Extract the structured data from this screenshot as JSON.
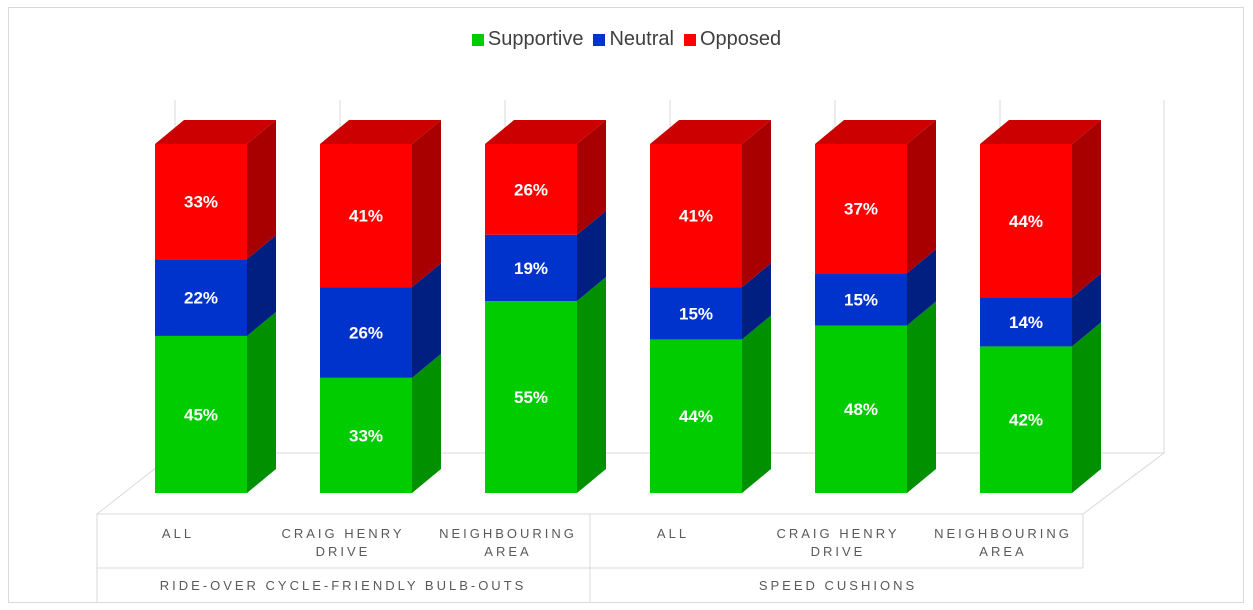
{
  "chart_data": {
    "type": "bar",
    "stacked": true,
    "three_d": true,
    "legend_position": "top",
    "groups": [
      {
        "label": "RIDE-OVER CYCLE-FRIENDLY BULB-OUTS",
        "categories": [
          "ALL",
          "CRAIG HENRY DRIVE",
          "NEIGHBOURING AREA"
        ]
      },
      {
        "label": "SPEED CUSHIONS",
        "categories": [
          "ALL",
          "CRAIG HENRY DRIVE",
          "NEIGHBOURING AREA"
        ]
      }
    ],
    "categories": [
      [
        "ALL"
      ],
      [
        "CRAIG HENRY",
        "DRIVE"
      ],
      [
        "NEIGHBOURING",
        "AREA"
      ],
      [
        "ALL"
      ],
      [
        "CRAIG HENRY",
        "DRIVE"
      ],
      [
        "NEIGHBOURING",
        "AREA"
      ]
    ],
    "series": [
      {
        "name": "Supportive",
        "color": "#00cc00",
        "side": "#009000",
        "top": "#00a800",
        "values": [
          45,
          33,
          55,
          44,
          48,
          42
        ],
        "labels": [
          "45%",
          "33%",
          "55%",
          "44%",
          "48%",
          "42%"
        ]
      },
      {
        "name": "Neutral",
        "color": "#0033cc",
        "side": "#001f80",
        "top": "#002aa8",
        "values": [
          22,
          26,
          19,
          15,
          15,
          14
        ],
        "labels": [
          "22%",
          "26%",
          "19%",
          "15%",
          "15%",
          "14%"
        ]
      },
      {
        "name": "Opposed",
        "color": "#ff0000",
        "side": "#a80000",
        "top": "#cc0000",
        "values": [
          33,
          41,
          26,
          41,
          37,
          44
        ],
        "labels": [
          "33%",
          "41%",
          "26%",
          "41%",
          "37%",
          "44%"
        ]
      }
    ],
    "ylim": [
      0,
      100
    ],
    "grid": true
  }
}
